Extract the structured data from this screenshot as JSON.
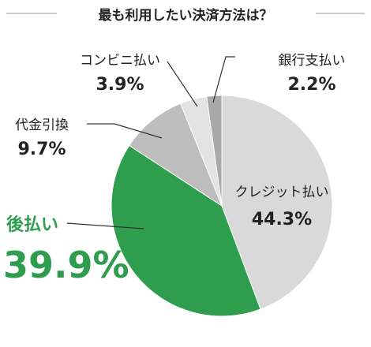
{
  "chart_data": {
    "type": "pie",
    "title": "最も利用したい決済方法は？",
    "slices": [
      {
        "label": "クレジット払い",
        "value": 44.3,
        "display": "44.3%",
        "color": "#d9d9d9"
      },
      {
        "label": "後払い",
        "value": 39.9,
        "display": "39.9%",
        "color": "#2e9e4e"
      },
      {
        "label": "代金引換",
        "value": 9.7,
        "display": "9.7%",
        "color": "#bdbdbd"
      },
      {
        "label": "コンビニ払い",
        "value": 3.9,
        "display": "3.9%",
        "color": "#e3e3e3"
      },
      {
        "label": "銀行支払い",
        "value": 2.2,
        "display": "2.2%",
        "color": "#a9a9a9"
      }
    ],
    "start_angle_deg": 0,
    "direction": "clockwise",
    "highlight_color": "#2e9e4e"
  }
}
